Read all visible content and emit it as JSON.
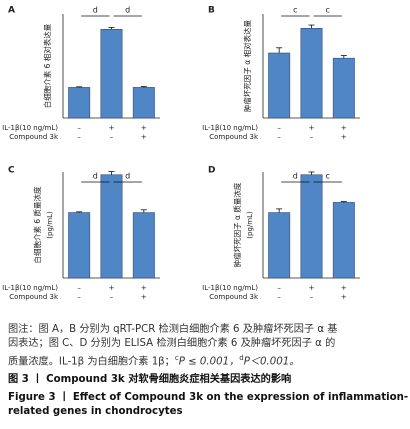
{
  "chart_data": [
    {
      "type": "bar",
      "label": "A",
      "y_label": "白细胞介素 6 相对表达量",
      "color": "#4f86c6",
      "values": [
        1.0,
        2.9,
        1.0
      ],
      "errors": [
        0.02,
        0.06,
        0.03
      ],
      "ylim": [
        0,
        3.4
      ],
      "significance": [
        "d",
        "d"
      ],
      "treatments": [
        {
          "name": "IL-1β(10 ng/mL)",
          "levels": [
            "–",
            "+",
            "+"
          ]
        },
        {
          "name": "Compound 3k",
          "levels": [
            "–",
            "–",
            "+"
          ]
        }
      ]
    },
    {
      "type": "bar",
      "label": "B",
      "y_label": "肿瘤坏死因子 α 相对表达量",
      "color": "#4f86c6",
      "values": [
        1.0,
        1.38,
        0.92
      ],
      "errors": [
        0.08,
        0.05,
        0.04
      ],
      "ylim": [
        0,
        1.6
      ],
      "significance": [
        "c",
        "c"
      ],
      "treatments": [
        {
          "name": "IL-1β(10 ng/mL)",
          "levels": [
            "–",
            "+",
            "+"
          ]
        },
        {
          "name": "Compound 3k",
          "levels": [
            "–",
            "–",
            "+"
          ]
        }
      ]
    },
    {
      "type": "bar",
      "label": "C",
      "y_label": "白细胞介素 6 质量浓度",
      "y_unit": "(pg/mL)",
      "color": "#4f86c6",
      "values": [
        710,
        1120,
        710
      ],
      "errors": [
        8,
        35,
        30
      ],
      "ylim": [
        0,
        1150
      ],
      "significance": [
        "d",
        "d"
      ],
      "treatments": [
        {
          "name": "IL-1β(10 ng/mL)",
          "levels": [
            "–",
            "+",
            "+"
          ]
        },
        {
          "name": "Compound 3k",
          "levels": [
            "–",
            "–",
            "+"
          ]
        }
      ]
    },
    {
      "type": "bar",
      "label": "D",
      "y_label": "肿瘤坏死因子 α 质量浓度",
      "y_unit": "(pg/mL)",
      "color": "#4f86c6",
      "values": [
        710,
        1120,
        820
      ],
      "errors": [
        40,
        30,
        10
      ],
      "ylim": [
        0,
        1150
      ],
      "significance": [
        "d",
        "c"
      ],
      "treatments": [
        {
          "name": "IL-1β(10 ng/mL)",
          "levels": [
            "–",
            "+",
            "+"
          ]
        },
        {
          "name": "Compound 3k",
          "levels": [
            "–",
            "–",
            "+"
          ]
        }
      ]
    }
  ],
  "caption": {
    "note_lines": [
      "图注：图 A，B 分别为 qRT-PCR 检测白细胞介素 6 及肿瘤坏死因子 α 基",
      "因表达；图 C、D 分别为 ELISA 检测白细胞介素 6 及肿瘤坏死因子 α 的"
    ],
    "note_last": [
      "质量浓度。IL-1β 为白细胞介素 1β；",
      "c",
      "P ≤ 0.001，",
      "d",
      "P＜0.001。"
    ],
    "title_cn": "图 3 丨 Compound 3k 对软骨细胞炎症相关基因表达的影响",
    "title_en": [
      "Figure 3  丨  Effect of Compound 3k on the expression of inflammation-",
      "related genes in chondrocytes"
    ]
  }
}
